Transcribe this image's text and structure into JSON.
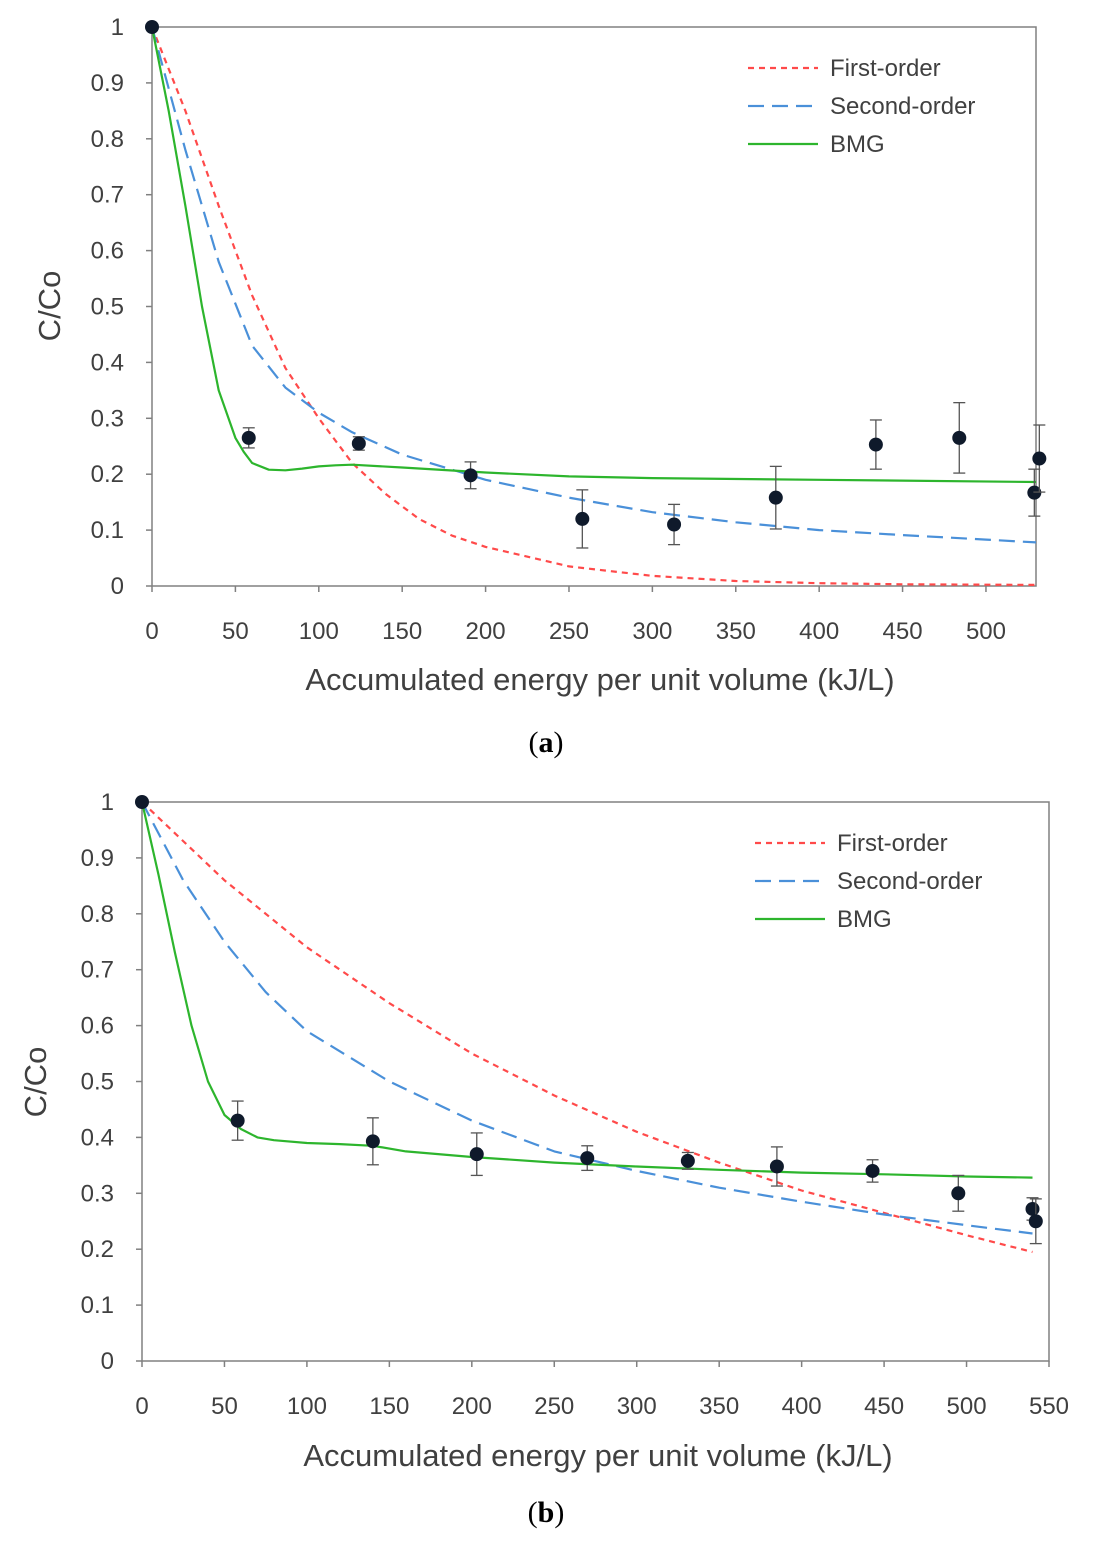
{
  "colors": {
    "first_order": "#ff4a4a",
    "second_order": "#4a90d9",
    "bmg": "#2db52d",
    "points": "#0f1a2b",
    "axis": "#808080",
    "text": "#404040"
  },
  "chart_data": [
    {
      "type": "line",
      "panel_label": "a",
      "title": "",
      "xlabel": "Accumulated energy per unit volume (kJ/L)",
      "ylabel": "C/Co",
      "xlim": [
        0,
        530
      ],
      "ylim": [
        0,
        1
      ],
      "xticks": [
        0,
        50,
        100,
        150,
        200,
        250,
        300,
        350,
        400,
        450,
        500
      ],
      "yticks": [
        0,
        0.1,
        0.2,
        0.3,
        0.4,
        0.5,
        0.6,
        0.7,
        0.8,
        0.9,
        1
      ],
      "grid": false,
      "legend_position": "top-right",
      "series": [
        {
          "name": "First-order",
          "style": "short-dash",
          "color_key": "first_order",
          "x": [
            0,
            20,
            40,
            60,
            80,
            100,
            120,
            140,
            160,
            180,
            200,
            250,
            300,
            350,
            400,
            450,
            530
          ],
          "y": [
            1.0,
            0.85,
            0.68,
            0.52,
            0.39,
            0.3,
            0.22,
            0.165,
            0.12,
            0.09,
            0.07,
            0.035,
            0.018,
            0.009,
            0.005,
            0.003,
            0.002
          ]
        },
        {
          "name": "Second-order",
          "style": "long-dash",
          "color_key": "second_order",
          "x": [
            0,
            20,
            40,
            60,
            80,
            100,
            120,
            150,
            200,
            250,
            300,
            350,
            400,
            450,
            500,
            530
          ],
          "y": [
            1.0,
            0.78,
            0.58,
            0.43,
            0.355,
            0.31,
            0.275,
            0.235,
            0.19,
            0.158,
            0.132,
            0.114,
            0.1,
            0.091,
            0.083,
            0.078
          ]
        },
        {
          "name": "BMG",
          "style": "solid",
          "color_key": "bmg",
          "x": [
            0,
            10,
            20,
            30,
            40,
            50,
            55,
            60,
            70,
            80,
            90,
            100,
            110,
            120,
            150,
            200,
            250,
            300,
            400,
            530
          ],
          "y": [
            1.0,
            0.85,
            0.68,
            0.5,
            0.35,
            0.265,
            0.24,
            0.22,
            0.208,
            0.207,
            0.21,
            0.214,
            0.216,
            0.217,
            0.212,
            0.203,
            0.196,
            0.193,
            0.19,
            0.186
          ]
        }
      ],
      "points": {
        "x": [
          0,
          58,
          124,
          191,
          258,
          313,
          374,
          434,
          484,
          529,
          532
        ],
        "y": [
          1.0,
          0.265,
          0.255,
          0.198,
          0.12,
          0.11,
          0.158,
          0.253,
          0.265,
          0.167,
          0.228
        ],
        "err": [
          0,
          0.018,
          0.012,
          0.024,
          0.052,
          0.036,
          0.056,
          0.044,
          0.063,
          0.042,
          0.06
        ]
      }
    },
    {
      "type": "line",
      "panel_label": "b",
      "title": "",
      "xlabel": "Accumulated energy per unit volume (kJ/L)",
      "ylabel": "C/Co",
      "xlim": [
        0,
        550
      ],
      "ylim": [
        0,
        1
      ],
      "xticks": [
        0,
        50,
        100,
        150,
        200,
        250,
        300,
        350,
        400,
        450,
        500,
        550
      ],
      "yticks": [
        0,
        0.1,
        0.2,
        0.3,
        0.4,
        0.5,
        0.6,
        0.7,
        0.8,
        0.9,
        1
      ],
      "grid": false,
      "legend_position": "top-right",
      "series": [
        {
          "name": "First-order",
          "style": "short-dash",
          "color_key": "first_order",
          "x": [
            0,
            50,
            100,
            150,
            200,
            250,
            300,
            350,
            400,
            450,
            500,
            540
          ],
          "y": [
            1.0,
            0.86,
            0.74,
            0.64,
            0.55,
            0.475,
            0.41,
            0.355,
            0.305,
            0.265,
            0.225,
            0.195
          ]
        },
        {
          "name": "Second-order",
          "style": "long-dash",
          "color_key": "second_order",
          "x": [
            0,
            25,
            50,
            75,
            100,
            150,
            200,
            250,
            300,
            350,
            400,
            450,
            500,
            540
          ],
          "y": [
            1.0,
            0.86,
            0.75,
            0.66,
            0.59,
            0.5,
            0.43,
            0.375,
            0.34,
            0.31,
            0.285,
            0.262,
            0.243,
            0.228
          ]
        },
        {
          "name": "BMG",
          "style": "solid",
          "color_key": "bmg",
          "x": [
            0,
            10,
            20,
            30,
            40,
            50,
            60,
            70,
            80,
            100,
            120,
            140,
            160,
            200,
            250,
            300,
            350,
            400,
            450,
            500,
            540
          ],
          "y": [
            1.0,
            0.87,
            0.73,
            0.6,
            0.5,
            0.44,
            0.415,
            0.4,
            0.395,
            0.39,
            0.388,
            0.385,
            0.375,
            0.365,
            0.355,
            0.348,
            0.342,
            0.337,
            0.334,
            0.33,
            0.328
          ]
        }
      ],
      "points": {
        "x": [
          0,
          58,
          140,
          203,
          270,
          331,
          385,
          443,
          495,
          540,
          542
        ],
        "y": [
          1.0,
          0.43,
          0.393,
          0.37,
          0.363,
          0.358,
          0.348,
          0.34,
          0.3,
          0.272,
          0.25
        ],
        "err": [
          0,
          0.035,
          0.042,
          0.038,
          0.022,
          0.015,
          0.035,
          0.02,
          0.032,
          0.02,
          0.04
        ]
      }
    }
  ]
}
